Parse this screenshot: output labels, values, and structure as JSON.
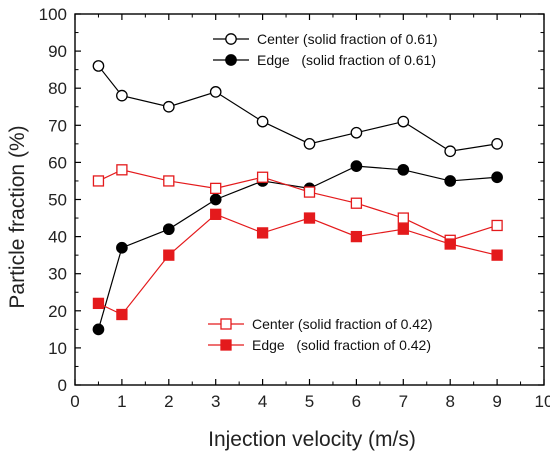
{
  "chart_data": {
    "type": "line",
    "xlabel": "Injection velocity (m/s)",
    "ylabel": "Particle fraction (%)",
    "xlim": [
      0,
      10
    ],
    "ylim": [
      0,
      100
    ],
    "xticks": [
      0,
      1,
      2,
      3,
      4,
      5,
      6,
      7,
      8,
      9,
      10
    ],
    "yticks": [
      0,
      10,
      20,
      30,
      40,
      50,
      60,
      70,
      80,
      90,
      100
    ],
    "grid": false,
    "x": [
      0.5,
      1,
      2,
      3,
      4,
      5,
      6,
      7,
      8,
      9
    ],
    "series": [
      {
        "name": "Center (solid fraction of 0.61)",
        "color": "#000000",
        "marker": "circle-open",
        "values": [
          86,
          78,
          75,
          79,
          71,
          65,
          68,
          71,
          63,
          65
        ]
      },
      {
        "name": "Edge   (solid fraction of 0.61)",
        "color": "#000000",
        "marker": "circle-filled",
        "values": [
          15,
          37,
          42,
          50,
          55,
          53,
          59,
          58,
          55,
          56
        ]
      },
      {
        "name": "Center (solid fraction of 0.42)",
        "color": "#e41a1c",
        "marker": "square-open",
        "values": [
          55,
          58,
          55,
          53,
          56,
          52,
          49,
          45,
          39,
          43
        ]
      },
      {
        "name": "Edge   (solid fraction of 0.42)",
        "color": "#e41a1c",
        "marker": "square-filled",
        "values": [
          22,
          19,
          35,
          46,
          41,
          45,
          40,
          42,
          38,
          35
        ]
      }
    ],
    "legends": [
      {
        "placement": "top-right",
        "series_index": [
          0,
          1
        ]
      },
      {
        "placement": "bottom-right",
        "series_index": [
          2,
          3
        ]
      }
    ]
  }
}
